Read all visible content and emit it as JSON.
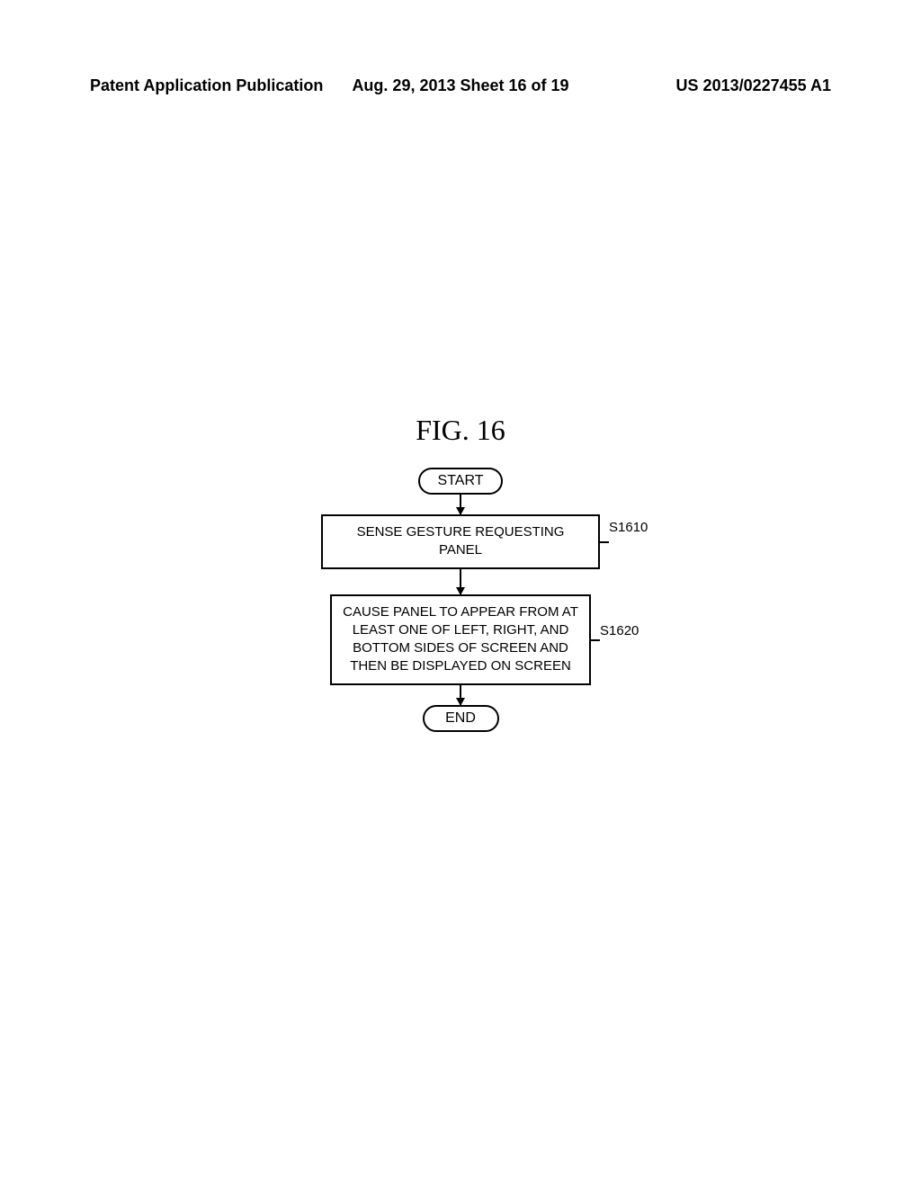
{
  "header": {
    "left": "Patent Application Publication",
    "center": "Aug. 29, 2013  Sheet 16 of 19",
    "right": "US 2013/0227455 A1"
  },
  "figure": {
    "title": "FIG.  16",
    "flowchart": {
      "type": "flowchart",
      "nodes": {
        "start": {
          "text": "START",
          "shape": "terminal"
        },
        "step1": {
          "text": "SENSE GESTURE REQUESTING PANEL",
          "shape": "process",
          "label": "S1610"
        },
        "step2": {
          "text": "CAUSE PANEL TO APPEAR FROM AT LEAST ONE OF LEFT, RIGHT, AND BOTTOM SIDES OF SCREEN AND THEN BE DISPLAYED ON SCREEN",
          "shape": "process",
          "label": "S1620"
        },
        "end": {
          "text": "END",
          "shape": "terminal"
        }
      },
      "styling": {
        "border_color": "#000000",
        "border_width": 2,
        "background_color": "#ffffff",
        "text_color": "#000000",
        "font_size": 15,
        "terminal_radius": 50,
        "arrow_color": "#000000"
      }
    }
  }
}
